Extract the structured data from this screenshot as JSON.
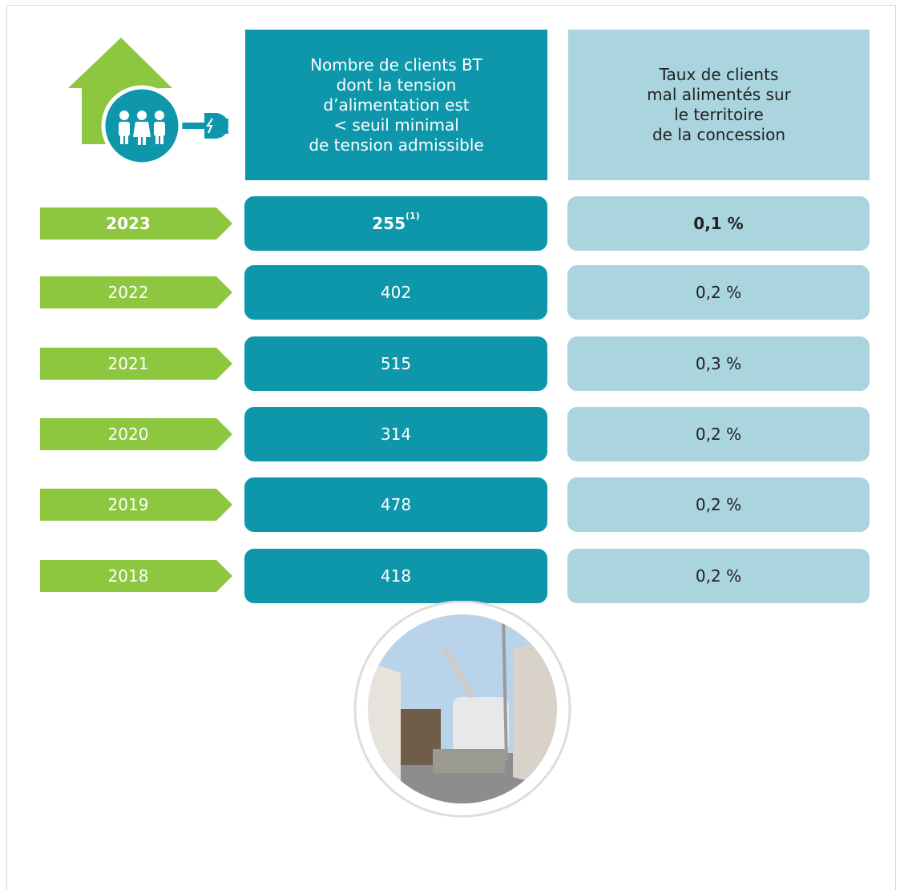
{
  "header": {
    "col1": [
      "Nombre de clients BT",
      "dont la tension",
      "d’alimentation est",
      "< seuil minimal",
      "de tension admissible"
    ],
    "col2": [
      "Taux de clients",
      "mal alimentés sur",
      "le territoire",
      "de la concession"
    ]
  },
  "table": {
    "rows": [
      {
        "year": 2023,
        "count": 255,
        "note": "(1)",
        "rate": "0,1 %"
      },
      {
        "year": 2022,
        "count": 402,
        "rate": "0,2 %"
      },
      {
        "year": 2021,
        "count": 515,
        "rate": "0,3 %"
      },
      {
        "year": 2020,
        "count": 314,
        "rate": "0,2 %"
      },
      {
        "year": 2019,
        "count": 478,
        "rate": "0,2 %"
      },
      {
        "year": 2018,
        "count": 418,
        "rate": "0,2 %"
      }
    ]
  }
}
